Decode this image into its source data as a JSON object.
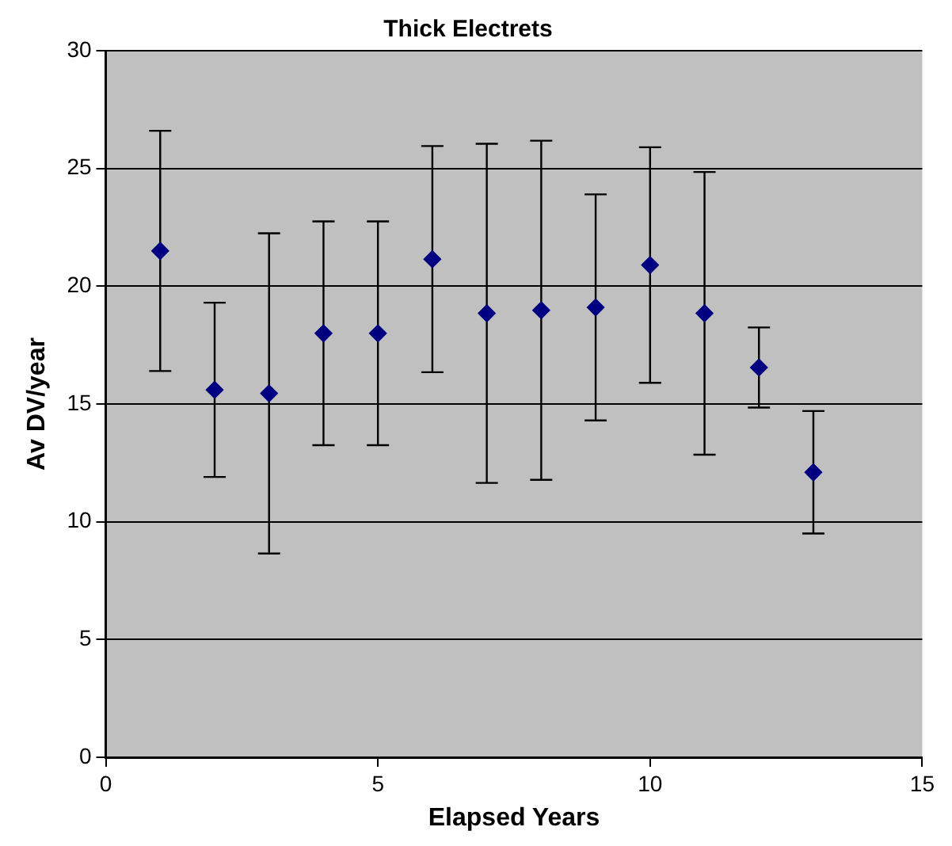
{
  "chart_data": {
    "type": "scatter",
    "title": "Thick Electrets",
    "xlabel": "Elapsed Years",
    "ylabel": "Av DV/year",
    "x": [
      1,
      2,
      3,
      4,
      5,
      6,
      7,
      8,
      9,
      10,
      11,
      12,
      13
    ],
    "values": [
      21.5,
      15.6,
      15.45,
      18.0,
      18.0,
      21.15,
      18.85,
      18.98,
      19.1,
      20.9,
      18.85,
      16.55,
      12.1
    ],
    "errors": [
      5.1,
      3.7,
      6.8,
      4.75,
      4.75,
      4.8,
      7.2,
      7.2,
      4.8,
      5.0,
      6.0,
      1.7,
      2.6
    ],
    "color": "#000080",
    "marker": "diamond",
    "grid": "y",
    "legend": false,
    "xlim": [
      0,
      15
    ],
    "xticks": [
      0,
      5,
      10,
      15
    ],
    "ylim": [
      0,
      30
    ],
    "yticks": [
      0,
      5,
      10,
      15,
      20,
      25,
      30
    ]
  }
}
